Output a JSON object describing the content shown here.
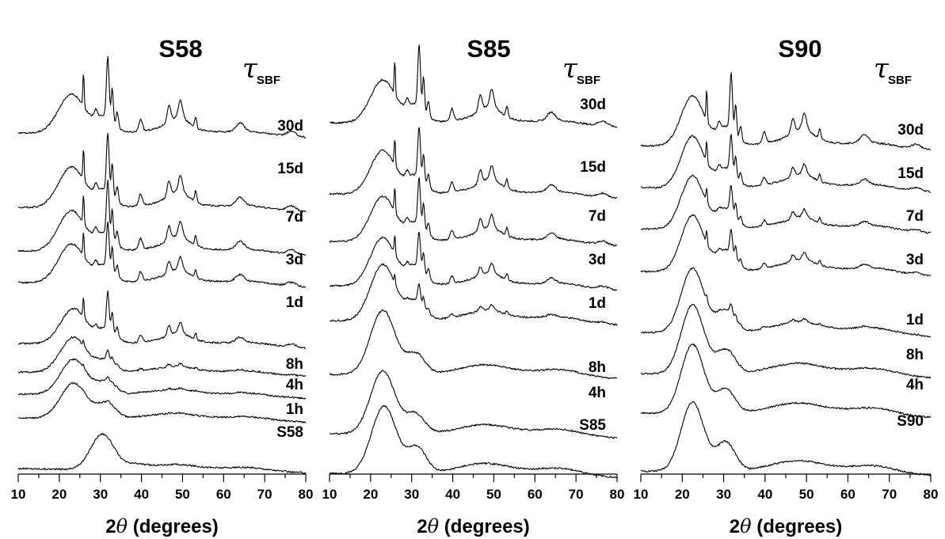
{
  "chart_data": [
    {
      "type": "line",
      "title": "S58",
      "xlabel_prefix": "2",
      "xlabel_symbol": "θ",
      "xlabel_suffix": " (degrees)",
      "xlim": [
        10,
        80
      ],
      "xticks": [
        "10",
        "20",
        "30",
        "40",
        "50",
        "60",
        "70",
        "80"
      ],
      "ylabel": "",
      "legend_symbol": "τ",
      "legend_sub": "SBF",
      "series": [
        {
          "name": "S58",
          "amorph_center": 30.5,
          "amorph_width": 4.0,
          "amorph_height": 45,
          "amorph_split": 0.15,
          "crystal": 0
        },
        {
          "name": "1h",
          "amorph_center": 23.5,
          "amorph_width": 4.5,
          "amorph_height": 45,
          "amorph_split": 0.6,
          "crystal": 0.05
        },
        {
          "name": "4h",
          "amorph_center": 23.5,
          "amorph_width": 4.5,
          "amorph_height": 45,
          "amorph_split": 0.5,
          "crystal": 0.12
        },
        {
          "name": "8h",
          "amorph_center": 23.5,
          "amorph_width": 4.5,
          "amorph_height": 45,
          "amorph_split": 0.5,
          "crystal": 0.22
        },
        {
          "name": "1d",
          "amorph_center": 23.5,
          "amorph_width": 4.5,
          "amorph_height": 45,
          "amorph_split": 0.6,
          "crystal": 0.85
        },
        {
          "name": "3d",
          "amorph_center": 23.0,
          "amorph_width": 4.5,
          "amorph_height": 50,
          "amorph_split": 0.6,
          "crystal": 1.05
        },
        {
          "name": "7d",
          "amorph_center": 23.0,
          "amorph_width": 4.5,
          "amorph_height": 52,
          "amorph_split": 0.6,
          "crystal": 1.25
        },
        {
          "name": "15d",
          "amorph_center": 23.0,
          "amorph_width": 4.5,
          "amorph_height": 52,
          "amorph_split": 0.6,
          "crystal": 1.35
        },
        {
          "name": "30d",
          "amorph_center": 23.0,
          "amorph_width": 4.5,
          "amorph_height": 50,
          "amorph_split": 0.6,
          "crystal": 1.4
        }
      ]
    },
    {
      "type": "line",
      "title": "S85",
      "xlabel_prefix": "2",
      "xlabel_symbol": "θ",
      "xlabel_suffix": " (degrees)",
      "xlim": [
        10,
        80
      ],
      "xticks": [
        "10",
        "20",
        "30",
        "40",
        "50",
        "60",
        "70",
        "80"
      ],
      "ylabel": "",
      "legend_symbol": "τ",
      "legend_sub": "SBF",
      "series": [
        {
          "name": "S85",
          "amorph_center": 23.3,
          "amorph_width": 4.3,
          "amorph_height": 86,
          "amorph_split": 0.55,
          "crystal": 0
        },
        {
          "name": "4h",
          "amorph_center": 23.0,
          "amorph_width": 4.3,
          "amorph_height": 80,
          "amorph_split": 0.45,
          "crystal": 0
        },
        {
          "name": "8h",
          "amorph_center": 23.0,
          "amorph_width": 4.3,
          "amorph_height": 82,
          "amorph_split": 0.45,
          "crystal": 0.03
        },
        {
          "name": "1d",
          "amorph_center": 23.0,
          "amorph_width": 4.3,
          "amorph_height": 72,
          "amorph_split": 0.5,
          "crystal": 0.4
        },
        {
          "name": "3d",
          "amorph_center": 23.0,
          "amorph_width": 4.3,
          "amorph_height": 62,
          "amorph_split": 0.6,
          "crystal": 0.8
        },
        {
          "name": "7d",
          "amorph_center": 23.0,
          "amorph_width": 4.3,
          "amorph_height": 58,
          "amorph_split": 0.6,
          "crystal": 1.05
        },
        {
          "name": "15d",
          "amorph_center": 23.0,
          "amorph_width": 4.3,
          "amorph_height": 56,
          "amorph_split": 0.6,
          "crystal": 1.15
        },
        {
          "name": "30d",
          "amorph_center": 23.0,
          "amorph_width": 4.3,
          "amorph_height": 55,
          "amorph_split": 0.6,
          "crystal": 1.4
        }
      ]
    },
    {
      "type": "line",
      "title": "S90",
      "xlabel_prefix": "2",
      "xlabel_symbol": "θ",
      "xlabel_suffix": " (degrees)",
      "xlim": [
        10,
        80
      ],
      "xticks": [
        "10",
        "20",
        "30",
        "40",
        "50",
        "60",
        "70",
        "80"
      ],
      "ylabel": "",
      "legend_symbol": "τ",
      "legend_sub": "SBF",
      "series": [
        {
          "name": "S90",
          "amorph_center": 22.5,
          "amorph_width": 3.9,
          "amorph_height": 88,
          "amorph_split": 0.6,
          "crystal": 0
        },
        {
          "name": "4h",
          "amorph_center": 22.5,
          "amorph_width": 3.9,
          "amorph_height": 88,
          "amorph_split": 0.5,
          "crystal": 0
        },
        {
          "name": "8h",
          "amorph_center": 22.5,
          "amorph_width": 3.9,
          "amorph_height": 88,
          "amorph_split": 0.5,
          "crystal": 0.02
        },
        {
          "name": "1d",
          "amorph_center": 22.5,
          "amorph_width": 3.9,
          "amorph_height": 82,
          "amorph_split": 0.5,
          "crystal": 0.22
        },
        {
          "name": "3d",
          "amorph_center": 22.5,
          "amorph_width": 3.9,
          "amorph_height": 72,
          "amorph_split": 0.55,
          "crystal": 0.55
        },
        {
          "name": "7d",
          "amorph_center": 22.5,
          "amorph_width": 3.9,
          "amorph_height": 68,
          "amorph_split": 0.55,
          "crystal": 0.62
        },
        {
          "name": "15d",
          "amorph_center": 22.5,
          "amorph_width": 3.9,
          "amorph_height": 66,
          "amorph_split": 0.55,
          "crystal": 0.85
        },
        {
          "name": "30d",
          "amorph_center": 22.5,
          "amorph_width": 3.9,
          "amorph_height": 64,
          "amorph_split": 0.55,
          "crystal": 1.3
        }
      ]
    }
  ]
}
